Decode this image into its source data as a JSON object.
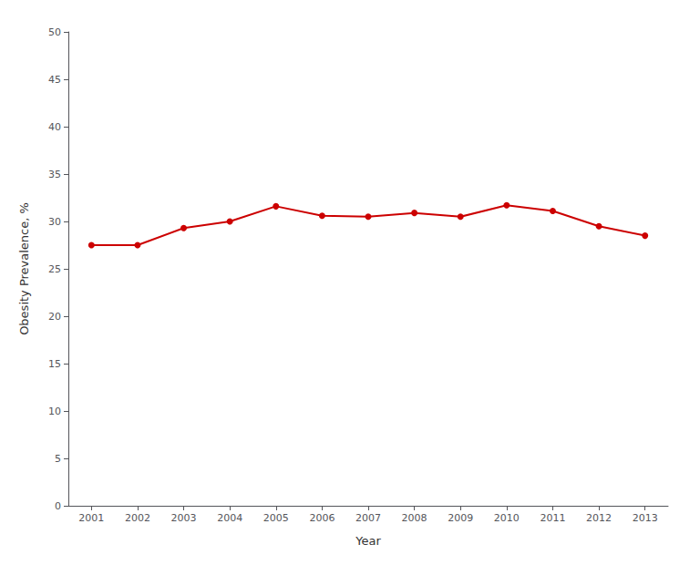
{
  "chart_data": {
    "type": "line",
    "x_label": "Year",
    "y_label": "Obesity Prevalence, %",
    "x": [
      2001,
      2002,
      2003,
      2004,
      2005,
      2006,
      2007,
      2008,
      2009,
      2010,
      2011,
      2012,
      2013
    ],
    "values": [
      27.5,
      27.5,
      29.3,
      30.0,
      31.6,
      30.6,
      30.5,
      30.9,
      30.5,
      31.7,
      31.1,
      29.5,
      28.5
    ],
    "color": "#cc0000",
    "marker": "circle",
    "xlim": [
      2000.5,
      2013.5
    ],
    "xticks": [
      2001,
      2002,
      2003,
      2004,
      2005,
      2006,
      2007,
      2008,
      2009,
      2010,
      2011,
      2012,
      2013
    ],
    "ylim": [
      0,
      50
    ],
    "yticks": [
      0,
      5,
      10,
      15,
      20,
      25,
      30,
      35,
      40,
      45,
      50
    ],
    "grid": false
  }
}
